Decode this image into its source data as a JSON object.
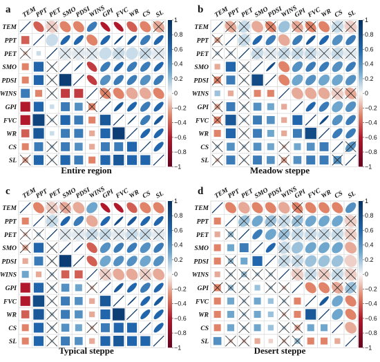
{
  "chart_data": [
    {
      "type": "heatmap",
      "panel_label": "a",
      "caption": "Entire region",
      "variables": [
        "TEM",
        "PPT",
        "PET",
        "SMO",
        "PDSI",
        "WINS",
        "GPI",
        "FVC",
        "WR",
        "CS",
        "SL"
      ],
      "method": "ellipse (upper) / square (lower), X = not significant",
      "matrix": [
        [
          1,
          -0.4,
          -0.1,
          -0.3,
          -0.3,
          0.5,
          -0.6,
          -0.6,
          -0.4,
          -0.3,
          -0.2
        ],
        [
          -0.4,
          1,
          0.1,
          0.6,
          0.6,
          -0.3,
          0.6,
          0.85,
          0.7,
          0.5,
          0.6
        ],
        [
          -0.1,
          0.1,
          1,
          0.05,
          0.05,
          0.05,
          0.1,
          0.1,
          0.1,
          0.1,
          0.05
        ],
        [
          -0.3,
          0.6,
          0.05,
          1,
          0.9,
          -0.5,
          0.5,
          0.6,
          0.5,
          0.5,
          0.6
        ],
        [
          -0.3,
          0.6,
          0.05,
          0.9,
          1,
          -0.5,
          0.4,
          0.5,
          0.5,
          0.4,
          0.5
        ],
        [
          0.5,
          -0.3,
          0.05,
          -0.5,
          -0.5,
          1,
          -0.3,
          -0.3,
          -0.2,
          -0.2,
          -0.3
        ],
        [
          -0.6,
          0.6,
          0.1,
          0.5,
          0.4,
          -0.3,
          1,
          0.7,
          0.6,
          0.5,
          0.6
        ],
        [
          -0.6,
          0.85,
          0.1,
          0.6,
          0.5,
          -0.3,
          0.7,
          1,
          0.9,
          0.5,
          0.7
        ],
        [
          -0.4,
          0.7,
          0.1,
          0.5,
          0.5,
          -0.2,
          0.6,
          0.9,
          1,
          0.6,
          0.6
        ],
        [
          -0.3,
          0.5,
          0.1,
          0.5,
          0.4,
          -0.2,
          0.5,
          0.5,
          0.6,
          1,
          0.6
        ],
        [
          -0.2,
          0.6,
          0.05,
          0.6,
          0.5,
          -0.3,
          0.6,
          0.7,
          0.6,
          0.6,
          1
        ]
      ],
      "insignificant_pairs": [
        [
          0,
          2
        ],
        [
          0,
          10
        ],
        [
          2,
          3
        ],
        [
          2,
          4
        ],
        [
          2,
          5
        ],
        [
          2,
          7
        ],
        [
          2,
          9
        ],
        [
          2,
          10
        ],
        [
          5,
          6
        ]
      ]
    },
    {
      "type": "heatmap",
      "panel_label": "b",
      "caption": "Meadow steppe",
      "variables": [
        "TEM",
        "PPT",
        "PET",
        "SMO",
        "PDSI",
        "WINS",
        "GPI",
        "FVC",
        "WR",
        "CS",
        "SL"
      ],
      "matrix": [
        [
          1,
          -0.2,
          0.1,
          -0.2,
          -0.3,
          0.2,
          -0.2,
          -0.3,
          -0.3,
          0.1,
          -0.1
        ],
        [
          -0.2,
          1,
          0.1,
          0.6,
          0.5,
          -0.2,
          0.5,
          0.7,
          0.6,
          0.4,
          0.5
        ],
        [
          0.1,
          0.1,
          1,
          0.1,
          0.05,
          0.1,
          0.1,
          0.1,
          0.05,
          0.1,
          0.05
        ],
        [
          -0.2,
          0.6,
          0.1,
          1,
          0.8,
          -0.3,
          0.4,
          0.5,
          0.5,
          0.4,
          0.5
        ],
        [
          -0.3,
          0.5,
          0.05,
          0.8,
          1,
          -0.3,
          0.3,
          0.4,
          0.3,
          0.3,
          0.4
        ],
        [
          0.2,
          -0.2,
          0.1,
          -0.3,
          -0.3,
          1,
          -0.2,
          -0.2,
          -0.2,
          -0.1,
          -0.2
        ],
        [
          -0.2,
          0.5,
          0.1,
          0.4,
          0.3,
          -0.2,
          1,
          0.6,
          0.5,
          0.3,
          0.4
        ],
        [
          -0.3,
          0.7,
          0.1,
          0.5,
          0.4,
          -0.2,
          0.6,
          1,
          0.8,
          0.4,
          0.5
        ],
        [
          -0.3,
          0.6,
          0.05,
          0.5,
          0.3,
          -0.2,
          0.5,
          0.8,
          1,
          0.5,
          0.5
        ],
        [
          0.1,
          0.4,
          0.1,
          0.4,
          0.3,
          -0.1,
          0.3,
          0.4,
          0.5,
          1,
          0.4
        ],
        [
          -0.1,
          0.5,
          0.05,
          0.5,
          0.4,
          -0.2,
          0.4,
          0.5,
          0.5,
          0.4,
          1
        ]
      ],
      "insignificant_pairs": [
        [
          0,
          1
        ],
        [
          0,
          2
        ],
        [
          0,
          4
        ],
        [
          0,
          6
        ],
        [
          0,
          7
        ],
        [
          0,
          9
        ],
        [
          0,
          10
        ],
        [
          1,
          2
        ],
        [
          2,
          3
        ],
        [
          2,
          4
        ],
        [
          2,
          5
        ],
        [
          2,
          6
        ],
        [
          2,
          7
        ],
        [
          2,
          8
        ],
        [
          2,
          9
        ],
        [
          2,
          10
        ],
        [
          5,
          9
        ],
        [
          5,
          10
        ],
        [
          9,
          10
        ]
      ]
    },
    {
      "type": "heatmap",
      "panel_label": "c",
      "caption": "Typical steppe",
      "variables": [
        "TEM",
        "PPT",
        "PET",
        "SMO",
        "PDSI",
        "WINS",
        "GPI",
        "FVC",
        "WR",
        "CS",
        "SL"
      ],
      "matrix": [
        [
          1,
          -0.3,
          -0.1,
          -0.2,
          -0.2,
          0.3,
          -0.6,
          -0.6,
          -0.4,
          -0.3,
          -0.3
        ],
        [
          -0.3,
          1,
          0.1,
          0.6,
          0.5,
          -0.2,
          0.6,
          0.8,
          0.7,
          0.6,
          0.6
        ],
        [
          -0.1,
          0.1,
          1,
          0.05,
          0.05,
          0.1,
          0.1,
          0.05,
          0.1,
          0.1,
          0.05
        ],
        [
          -0.2,
          0.6,
          0.05,
          1,
          0.9,
          -0.4,
          0.4,
          0.5,
          0.5,
          0.4,
          0.5
        ],
        [
          -0.2,
          0.5,
          0.05,
          0.9,
          1,
          -0.4,
          0.3,
          0.4,
          0.4,
          0.3,
          0.4
        ],
        [
          0.3,
          -0.2,
          0.1,
          -0.4,
          -0.4,
          1,
          -0.1,
          -0.2,
          -0.2,
          -0.1,
          -0.2
        ],
        [
          -0.6,
          0.6,
          0.1,
          0.4,
          0.3,
          -0.1,
          1,
          0.7,
          0.6,
          0.5,
          0.6
        ],
        [
          -0.6,
          0.8,
          0.05,
          0.5,
          0.4,
          -0.2,
          0.7,
          1,
          0.9,
          0.6,
          0.7
        ],
        [
          -0.4,
          0.7,
          0.1,
          0.5,
          0.4,
          -0.2,
          0.6,
          0.9,
          1,
          0.6,
          0.6
        ],
        [
          -0.3,
          0.6,
          0.1,
          0.4,
          0.3,
          -0.1,
          0.5,
          0.6,
          0.6,
          1,
          0.6
        ],
        [
          -0.3,
          0.6,
          0.05,
          0.5,
          0.4,
          -0.2,
          0.6,
          0.7,
          0.6,
          0.6,
          1
        ]
      ],
      "insignificant_pairs": [
        [
          0,
          2
        ],
        [
          0,
          3
        ],
        [
          1,
          2
        ],
        [
          2,
          3
        ],
        [
          2,
          4
        ],
        [
          2,
          5
        ],
        [
          2,
          6
        ],
        [
          2,
          7
        ],
        [
          2,
          8
        ],
        [
          2,
          9
        ],
        [
          2,
          10
        ],
        [
          5,
          6
        ],
        [
          5,
          9
        ]
      ]
    },
    {
      "type": "heatmap",
      "panel_label": "d",
      "caption": "Desert steppe",
      "variables": [
        "TEM",
        "PPT",
        "PET",
        "SMO",
        "PDSI",
        "WINS",
        "GPI",
        "FVC",
        "WR",
        "CS",
        "SL"
      ],
      "matrix": [
        [
          1,
          -0.3,
          -0.2,
          -0.3,
          -0.3,
          -0.2,
          -0.3,
          -0.3,
          -0.3,
          -0.3,
          0.4
        ],
        [
          -0.3,
          1,
          0.2,
          0.3,
          0.2,
          0.1,
          0.2,
          0.3,
          0.3,
          0.3,
          -0.1
        ],
        [
          -0.2,
          0.2,
          1,
          0.5,
          0.3,
          0.2,
          0.1,
          0.1,
          0.1,
          0.1,
          -0.1
        ],
        [
          -0.3,
          0.3,
          0.5,
          1,
          0.6,
          0.1,
          0.2,
          0.3,
          0.3,
          0.3,
          -0.2
        ],
        [
          -0.3,
          0.2,
          0.3,
          0.6,
          1,
          0.1,
          0.1,
          0.2,
          0.2,
          0.2,
          -0.1
        ],
        [
          -0.2,
          0.1,
          0.2,
          0.1,
          0.1,
          1,
          -0.1,
          0.1,
          -0.1,
          0.1,
          -0.1
        ],
        [
          -0.3,
          0.2,
          0.1,
          0.2,
          0.1,
          -0.1,
          1,
          -0.3,
          -0.3,
          -0.2,
          0.2
        ],
        [
          -0.3,
          0.3,
          0.1,
          0.3,
          0.2,
          0.1,
          -0.3,
          1,
          0.7,
          0.3,
          -0.3
        ],
        [
          -0.3,
          0.3,
          0.1,
          0.3,
          0.2,
          -0.1,
          -0.3,
          0.7,
          1,
          0.3,
          -0.3
        ],
        [
          -0.3,
          0.3,
          0.1,
          0.3,
          0.2,
          0.1,
          -0.2,
          0.3,
          0.3,
          1,
          -0.2
        ],
        [
          0.4,
          -0.1,
          -0.1,
          -0.2,
          -0.1,
          -0.1,
          0.2,
          -0.3,
          -0.3,
          -0.2,
          1
        ]
      ],
      "insignificant_pairs": [
        [
          0,
          6
        ],
        [
          1,
          2
        ],
        [
          1,
          4
        ],
        [
          1,
          5
        ],
        [
          1,
          6
        ],
        [
          1,
          10
        ],
        [
          2,
          5
        ],
        [
          2,
          6
        ],
        [
          2,
          7
        ],
        [
          2,
          8
        ],
        [
          2,
          9
        ],
        [
          2,
          10
        ],
        [
          3,
          5
        ],
        [
          4,
          5
        ],
        [
          4,
          6
        ],
        [
          5,
          6
        ],
        [
          5,
          7
        ],
        [
          5,
          8
        ],
        [
          5,
          9
        ],
        [
          5,
          10
        ],
        [
          6,
          9
        ],
        [
          6,
          10
        ]
      ]
    }
  ],
  "colorbar": {
    "ticks": [
      "1",
      "0.8",
      "0.6",
      "0.4",
      "0.2",
      "0",
      "−0.2",
      "−0.4",
      "−0.6",
      "−0.8",
      "−1"
    ],
    "colors": {
      "negative": "#67001f",
      "zero": "#f7f7f7",
      "positive": "#053061"
    }
  }
}
